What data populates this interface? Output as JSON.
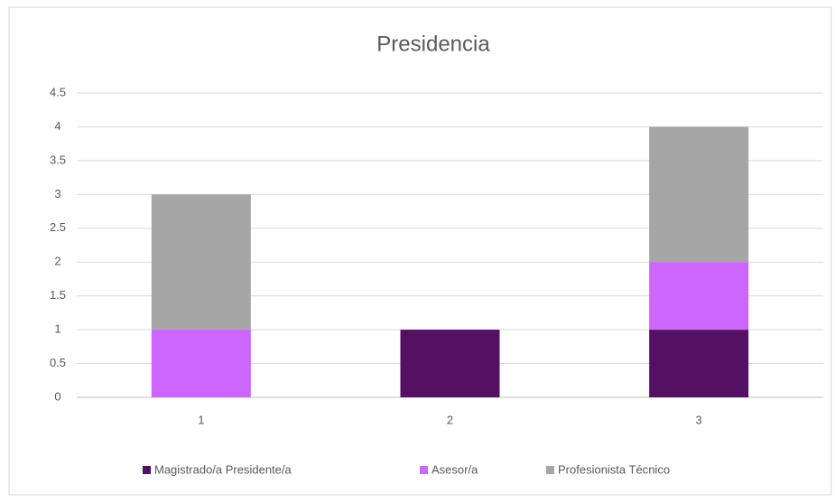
{
  "chart_data": {
    "type": "stacked_bar",
    "title": "Presidencia",
    "categories": [
      "1",
      "2",
      "3"
    ],
    "series": [
      {
        "name": "Magistrado/a Presidente/a",
        "color": "#541062",
        "values": [
          0,
          1,
          1
        ]
      },
      {
        "name": "Asesor/a",
        "color": "#cc66ff",
        "values": [
          1,
          0,
          1
        ]
      },
      {
        "name": "Profesionista Técnico",
        "color": "#a6a6a6",
        "values": [
          2,
          0,
          2
        ]
      }
    ],
    "ylim": [
      0,
      4.5
    ],
    "yticks": [
      0,
      0.5,
      1,
      1.5,
      2,
      2.5,
      3,
      3.5,
      4,
      4.5
    ],
    "grid": true,
    "legend": "bottom"
  }
}
